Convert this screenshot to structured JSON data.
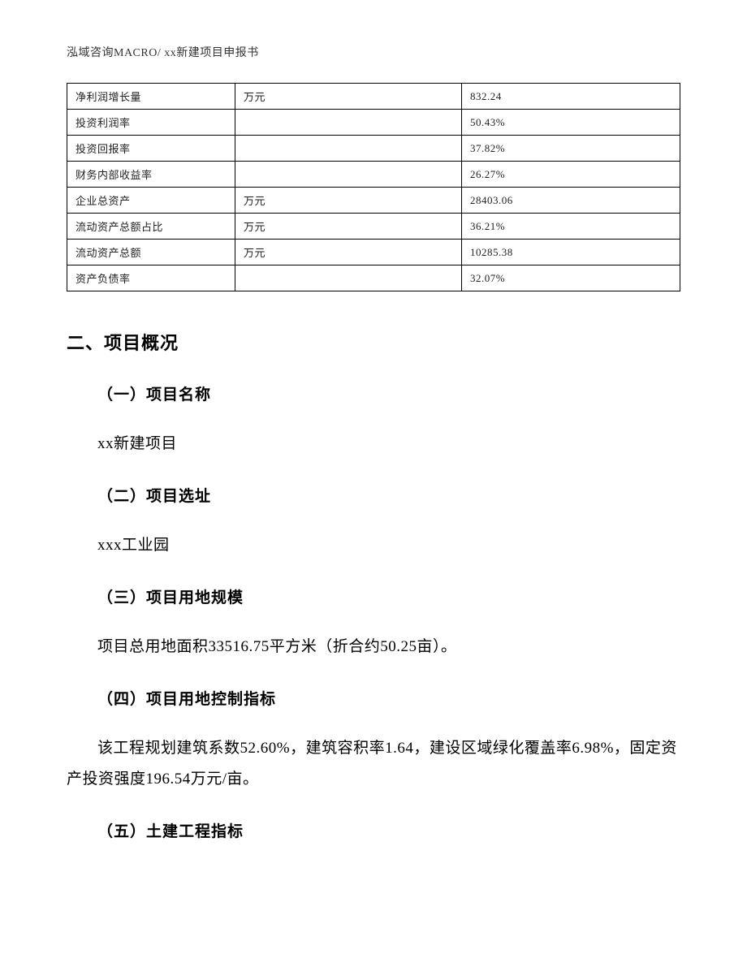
{
  "header": {
    "text": "泓域咨询MACRO/   xx新建项目申报书"
  },
  "table": {
    "columns_width": {
      "label": 186,
      "unit": 258
    },
    "rows": [
      {
        "label": "净利润增长量",
        "unit": "万元",
        "value": "832.24"
      },
      {
        "label": "投资利润率",
        "unit": "",
        "value": "50.43%"
      },
      {
        "label": "投资回报率",
        "unit": "",
        "value": "37.82%"
      },
      {
        "label": "财务内部收益率",
        "unit": "",
        "value": "26.27%"
      },
      {
        "label": "企业总资产",
        "unit": "万元",
        "value": "28403.06"
      },
      {
        "label": "流动资产总额占比",
        "unit": "万元",
        "value": "36.21%"
      },
      {
        "label": "流动资产总额",
        "unit": "万元",
        "value": "10285.38"
      },
      {
        "label": "资产负债率",
        "unit": "",
        "value": "32.07%"
      }
    ]
  },
  "section": {
    "title": "二、项目概况",
    "items": [
      {
        "heading": "（一）项目名称",
        "body": "xx新建项目"
      },
      {
        "heading": "（二）项目选址",
        "body": "xxx工业园"
      },
      {
        "heading": "（三）项目用地规模",
        "body": "项目总用地面积33516.75平方米（折合约50.25亩）。"
      },
      {
        "heading": "（四）项目用地控制指标",
        "body": "该工程规划建筑系数52.60%，建筑容积率1.64，建设区域绿化覆盖率6.98%，固定资产投资强度196.54万元/亩。"
      },
      {
        "heading": "（五）土建工程指标",
        "body": ""
      }
    ]
  },
  "colors": {
    "background": "#ffffff",
    "text": "#000000",
    "table_border": "#000000",
    "table_text": "#222222",
    "header_text": "#333333"
  },
  "typography": {
    "header_fontsize": 14,
    "table_fontsize": 13,
    "section_title_fontsize": 22,
    "subheading_fontsize": 19,
    "body_fontsize": 19,
    "body_line_height": 2.0,
    "heading_font": "SimHei",
    "body_font": "SimSun"
  }
}
